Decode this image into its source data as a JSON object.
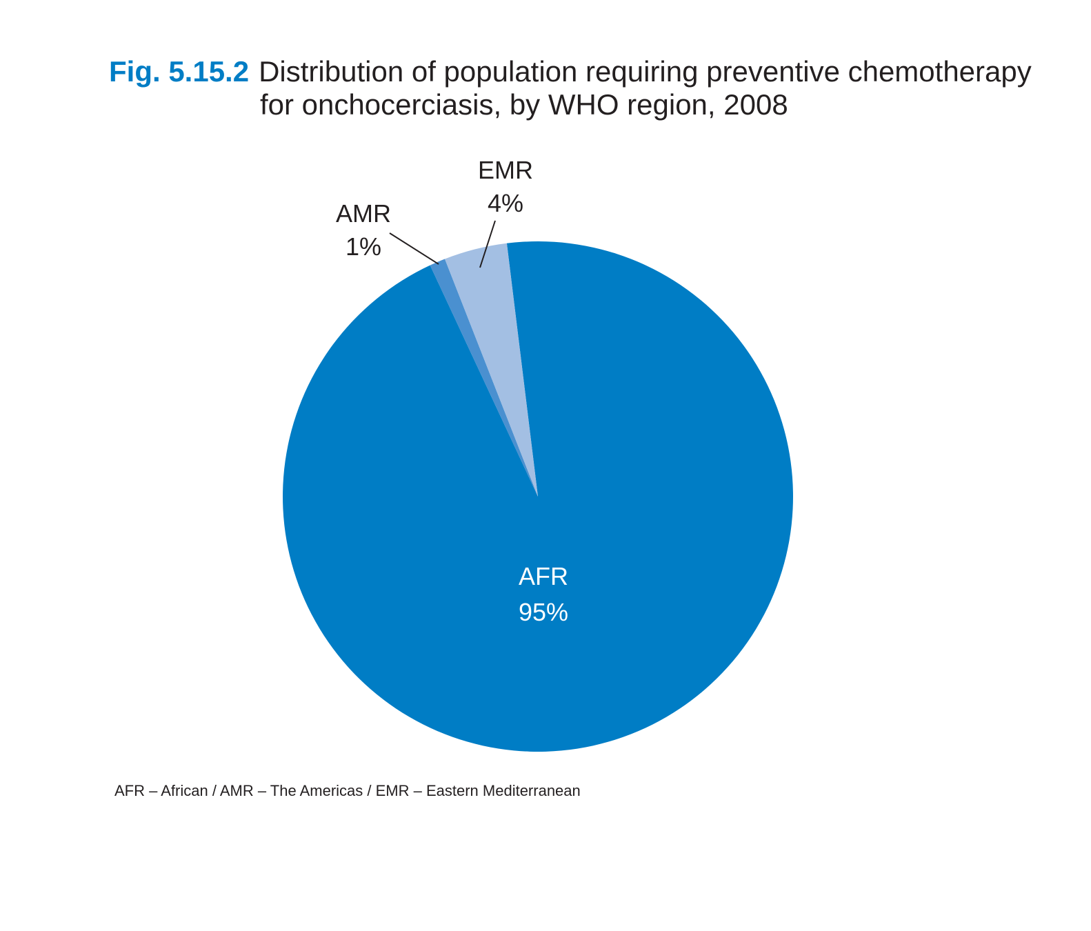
{
  "chart_data": {
    "type": "pie",
    "figure_label": "Fig. 5.15.2",
    "title_lines": [
      "Distribution of population requiring preventive chemotherapy",
      "for onchocerciasis, by WHO region, 2008"
    ],
    "categories": [
      "AFR",
      "AMR",
      "EMR"
    ],
    "values": [
      95,
      1,
      4
    ],
    "value_labels": [
      "95%",
      "1%",
      "4%"
    ],
    "colors": [
      "#007dc5",
      "#4a90d0",
      "#a3bfe3"
    ],
    "footnote": "AFR – African / AMR – The Americas / EMR – Eastern Mediterranean"
  }
}
